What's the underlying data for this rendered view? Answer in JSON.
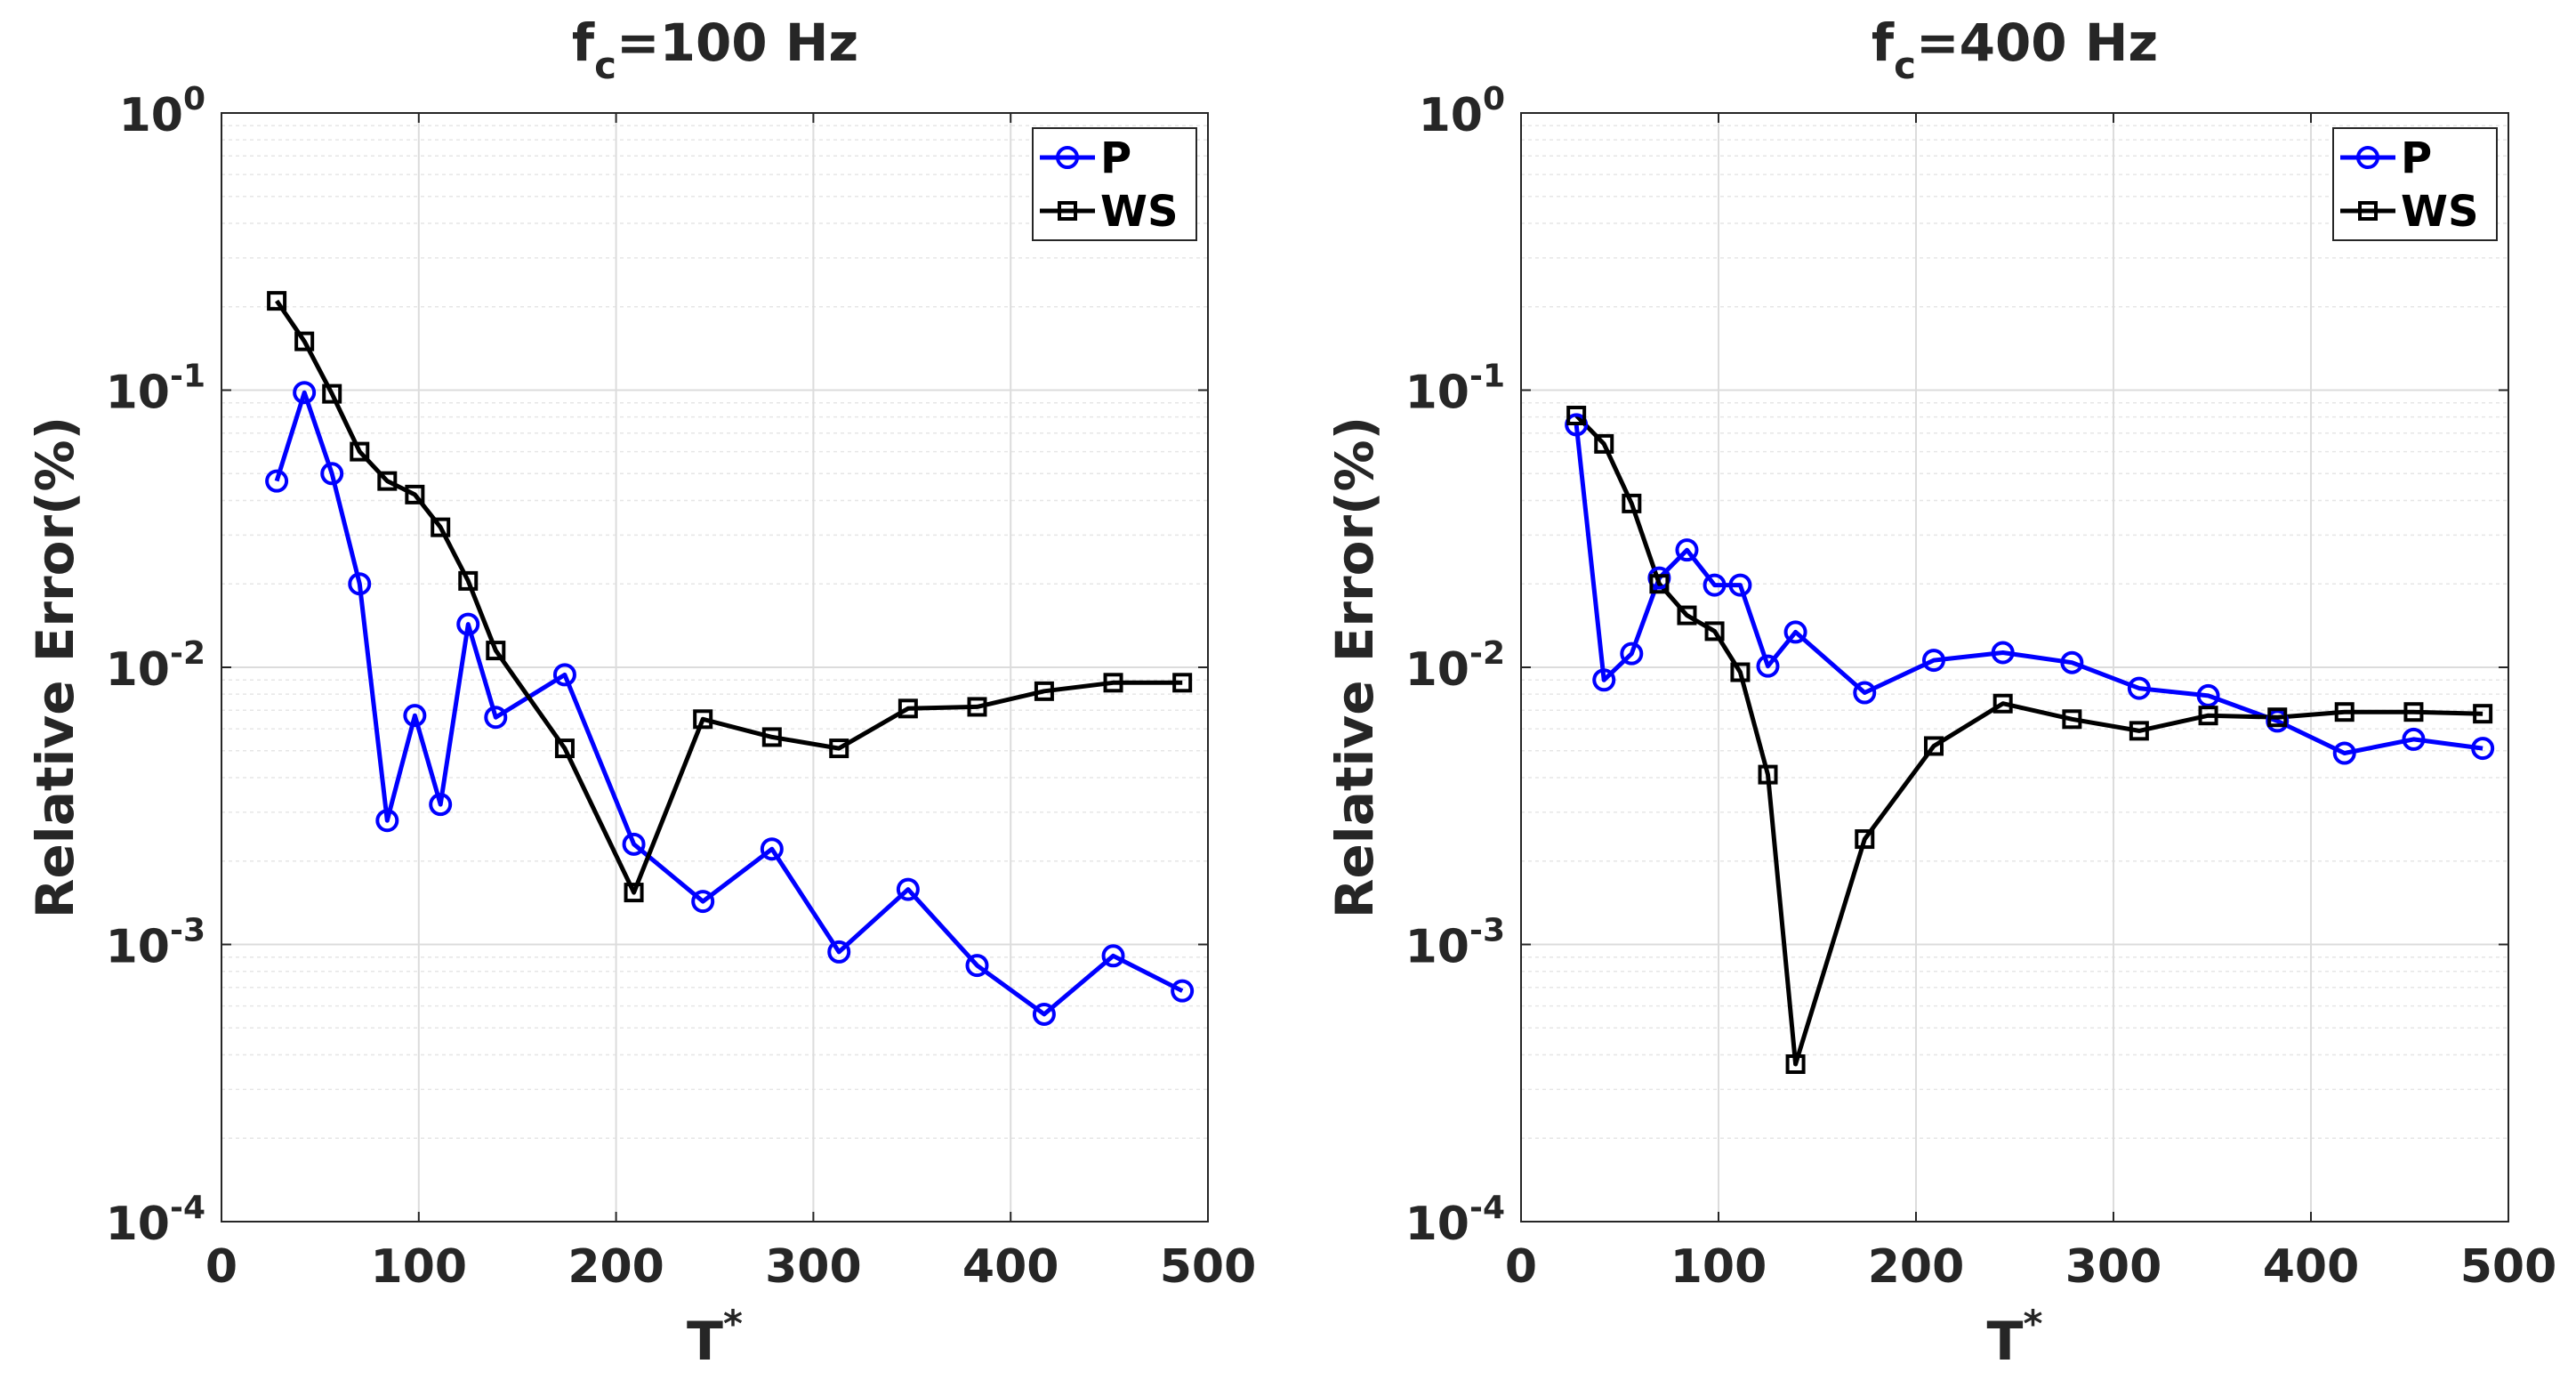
{
  "chart_data": [
    {
      "type": "line",
      "title": "f",
      "title_sub": "c",
      "title_rest": "=100 Hz",
      "xlabel": "T",
      "xlabel_sup": "*",
      "ylabel": "Relative Error(%)",
      "xlim": [
        0,
        500
      ],
      "ylim": [
        0.0001,
        1
      ],
      "yscale": "log",
      "xticks": [
        0,
        100,
        200,
        300,
        400,
        500
      ],
      "yticks": [
        {
          "base": "10",
          "exp": "-4",
          "value": 0.0001
        },
        {
          "base": "10",
          "exp": "-3",
          "value": 0.001
        },
        {
          "base": "10",
          "exp": "-2",
          "value": 0.01
        },
        {
          "base": "10",
          "exp": "-1",
          "value": 0.1
        },
        {
          "base": "10",
          "exp": "0",
          "value": 1
        }
      ],
      "grid": true,
      "legend": "top-right",
      "series": [
        {
          "name": "P",
          "color": "#0000ff",
          "marker": "circle",
          "x": [
            28,
            42,
            56,
            70,
            84,
            98,
            111,
            125,
            139,
            174,
            209,
            244,
            279,
            313,
            348,
            383,
            417,
            452,
            487
          ],
          "y": [
            0.047,
            0.098,
            0.05,
            0.02,
            0.0028,
            0.0067,
            0.0032,
            0.0143,
            0.0066,
            0.0094,
            0.0023,
            0.00143,
            0.00221,
            0.00094,
            0.00158,
            0.00084,
            0.00056,
            0.00091,
            0.00068
          ]
        },
        {
          "name": "WS",
          "color": "#000000",
          "marker": "square",
          "x": [
            28,
            42,
            56,
            70,
            84,
            98,
            111,
            125,
            139,
            174,
            209,
            244,
            279,
            313,
            348,
            383,
            417,
            452,
            487
          ],
          "y": [
            0.21,
            0.15,
            0.097,
            0.06,
            0.047,
            0.042,
            0.032,
            0.0205,
            0.0115,
            0.0051,
            0.00154,
            0.0065,
            0.0056,
            0.0051,
            0.0071,
            0.0072,
            0.0082,
            0.0088,
            0.0088
          ]
        }
      ]
    },
    {
      "type": "line",
      "title": "f",
      "title_sub": "c",
      "title_rest": "=400 Hz",
      "xlabel": "T",
      "xlabel_sup": "*",
      "ylabel": "Relative Error(%)",
      "xlim": [
        0,
        500
      ],
      "ylim": [
        0.0001,
        1
      ],
      "yscale": "log",
      "xticks": [
        0,
        100,
        200,
        300,
        400,
        500
      ],
      "yticks": [
        {
          "base": "10",
          "exp": "-4",
          "value": 0.0001
        },
        {
          "base": "10",
          "exp": "-3",
          "value": 0.001
        },
        {
          "base": "10",
          "exp": "-2",
          "value": 0.01
        },
        {
          "base": "10",
          "exp": "-1",
          "value": 0.1
        },
        {
          "base": "10",
          "exp": "0",
          "value": 1
        }
      ],
      "grid": true,
      "legend": "top-right",
      "series": [
        {
          "name": "P",
          "color": "#0000ff",
          "marker": "circle",
          "x": [
            28,
            42,
            56,
            70,
            84,
            98,
            111,
            125,
            139,
            174,
            209,
            244,
            279,
            313,
            348,
            383,
            417,
            452,
            487
          ],
          "y": [
            0.075,
            0.009,
            0.0112,
            0.021,
            0.0265,
            0.0198,
            0.0198,
            0.0101,
            0.0134,
            0.0081,
            0.0106,
            0.0113,
            0.0104,
            0.0084,
            0.0079,
            0.0064,
            0.0049,
            0.0055,
            0.0051
          ]
        },
        {
          "name": "WS",
          "color": "#000000",
          "marker": "square",
          "x": [
            28,
            42,
            56,
            70,
            84,
            98,
            111,
            125,
            139,
            174,
            209,
            244,
            279,
            313,
            348,
            383,
            417,
            452,
            487
          ],
          "y": [
            0.081,
            0.064,
            0.039,
            0.02,
            0.0154,
            0.0135,
            0.0096,
            0.0041,
            0.00037,
            0.0024,
            0.0052,
            0.0074,
            0.0065,
            0.0059,
            0.0067,
            0.0066,
            0.0069,
            0.0069,
            0.0068
          ]
        }
      ]
    }
  ]
}
